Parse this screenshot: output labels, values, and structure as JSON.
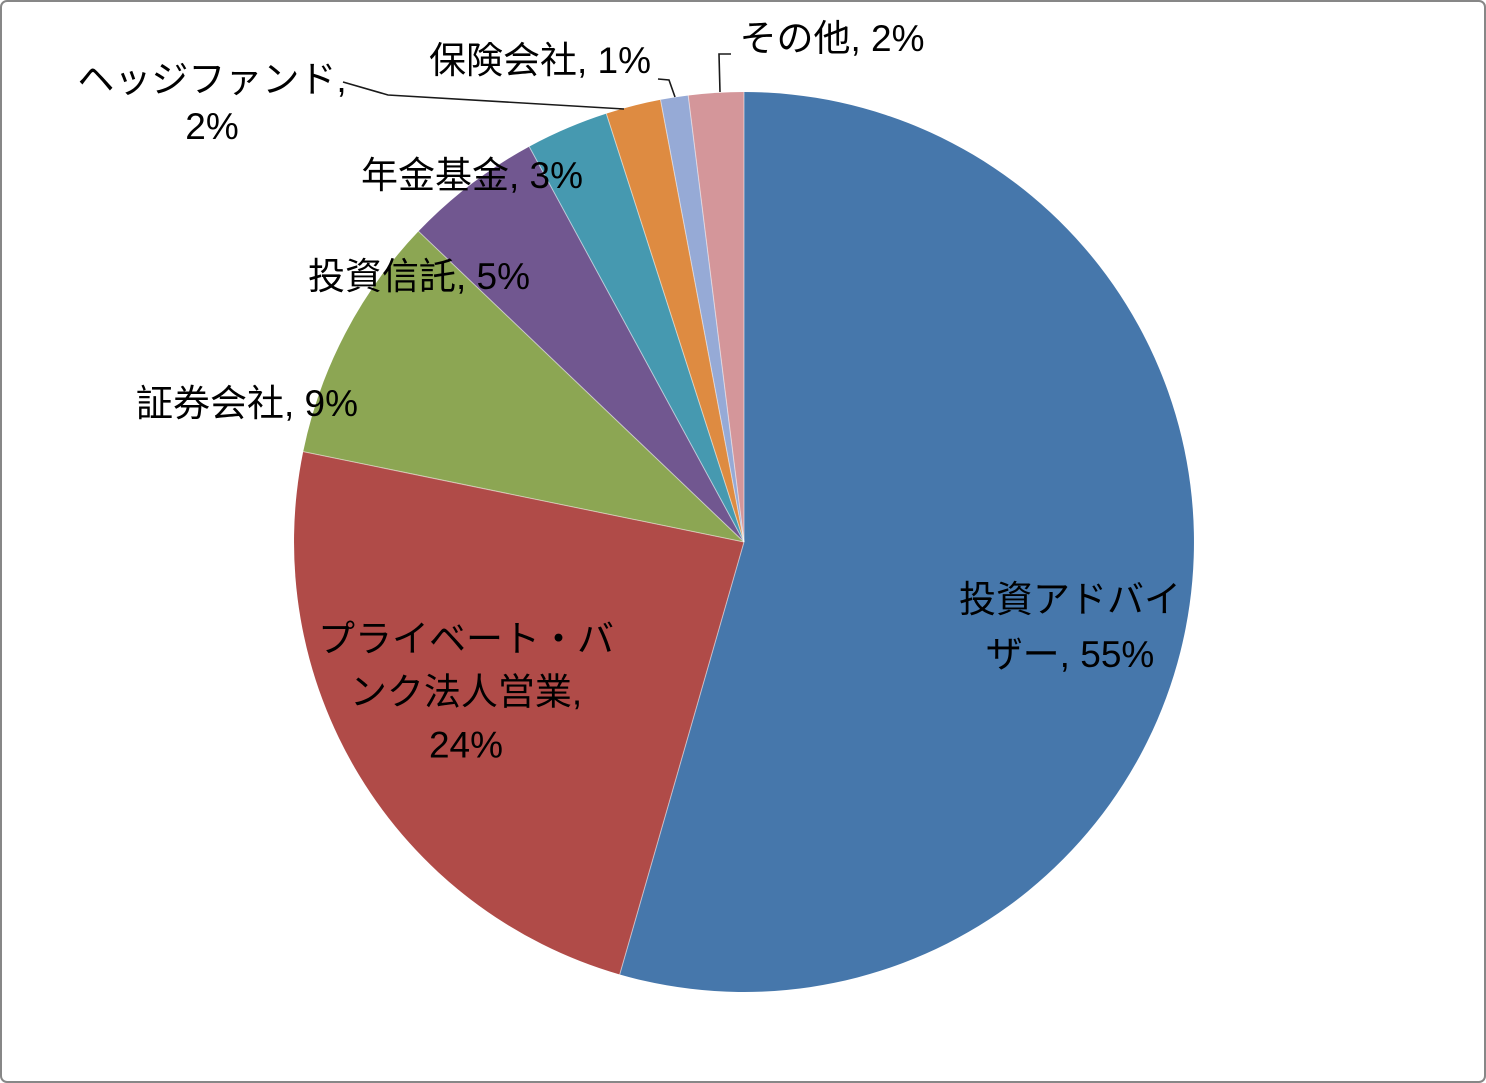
{
  "chart_data": {
    "type": "pie",
    "title": "",
    "legend": "none",
    "start_angle": "top",
    "direction": "clockwise",
    "unit": "%",
    "categories": [
      "投資アドバイザー",
      "プライベート・バンク法人営業",
      "証券会社",
      "投資信託",
      "年金基金",
      "ヘッジファンド",
      "保険会社",
      "その他"
    ],
    "values": [
      55,
      24,
      9,
      5,
      3,
      2,
      1,
      2
    ],
    "colors": [
      "#4677AB",
      "#B04B48",
      "#8CA653",
      "#715790",
      "#4699B0",
      "#DE8B41",
      "#96AAD6",
      "#D4969A"
    ],
    "display_labels": [
      "投資アドバイ\nザー, 55%",
      "プライベート・バ\nンク法人営業, \n24%",
      "証券会社, 9%",
      "投資信託, 5%",
      "年金基金, 3%",
      "ヘッジファンド, \n2%",
      "保険会社, 1%",
      "その他, 2%"
    ]
  }
}
